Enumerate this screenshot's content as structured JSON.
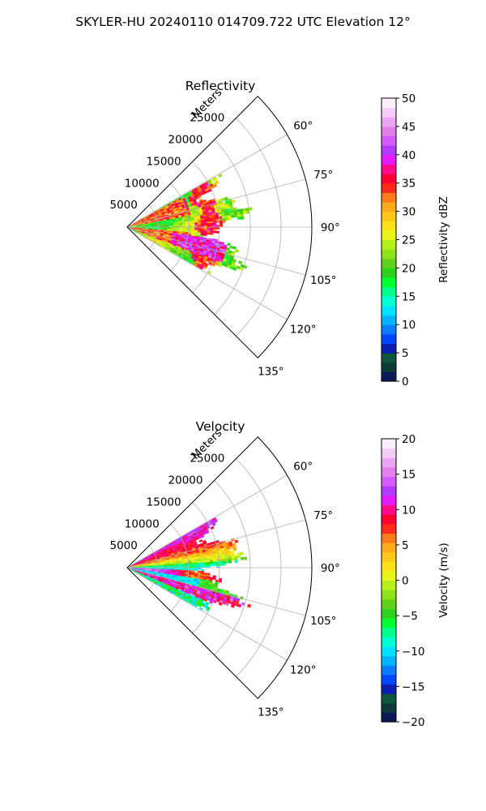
{
  "figure": {
    "suptitle": "SKYLER-HU  20240110  014709.722 UTC Elevation 12°"
  },
  "chart_data": [
    {
      "type": "heatmap",
      "title": "Reflectivity",
      "projection": "polar-sector",
      "r_axis_label": "Meters",
      "r_ticks": [
        5000,
        10000,
        15000,
        20000,
        25000
      ],
      "r_tick_labels": [
        "5000",
        "10000",
        "15000",
        "20000",
        "25000"
      ],
      "r_max": 30000,
      "theta_range_deg": [
        45,
        135
      ],
      "theta_ticks_deg": [
        60,
        75,
        90,
        105,
        120,
        135
      ],
      "theta_tick_labels": [
        "60°",
        "75°",
        "90°",
        "105°",
        "120°",
        "135°"
      ],
      "grid": true,
      "colorbar": {
        "label": "Reflectivity dBZ",
        "range": [
          0,
          50
        ],
        "ticks": [
          0,
          5,
          10,
          15,
          20,
          25,
          30,
          35,
          40,
          45,
          50
        ],
        "tick_labels": [
          "0",
          "5",
          "10",
          "15",
          "20",
          "25",
          "30",
          "35",
          "40",
          "45",
          "50"
        ],
        "colors": [
          "#0b1a55",
          "#0d3b3b",
          "#11553a",
          "#0a1fb0",
          "#0047ff",
          "#0a7dff",
          "#00b4ff",
          "#00e3ff",
          "#00ffd5",
          "#00ff8c",
          "#00ff33",
          "#2fd21a",
          "#5fd11a",
          "#8fe31a",
          "#b6f01a",
          "#e7f51a",
          "#ffe11a",
          "#ffc81a",
          "#ffaa1a",
          "#ff7c1a",
          "#ff2a1a",
          "#ff0033",
          "#ff0a8a",
          "#e61aff",
          "#b23bff",
          "#d35bff",
          "#e27fea",
          "#eaa5f0",
          "#f3cdf7",
          "#fbeefc"
        ]
      },
      "data_description_values": {
        "approx_range_m": [
          0,
          24000
        ],
        "approx_azimuth_deg": [
          60,
          120
        ],
        "dominant_dBZ": [
          20,
          38
        ]
      }
    },
    {
      "type": "heatmap",
      "title": "Velocity",
      "projection": "polar-sector",
      "r_axis_label": "Meters",
      "r_ticks": [
        5000,
        10000,
        15000,
        20000,
        25000
      ],
      "r_tick_labels": [
        "5000",
        "10000",
        "15000",
        "20000",
        "25000"
      ],
      "r_max": 30000,
      "theta_range_deg": [
        45,
        135
      ],
      "theta_ticks_deg": [
        60,
        75,
        90,
        105,
        120,
        135
      ],
      "theta_tick_labels": [
        "60°",
        "75°",
        "90°",
        "105°",
        "120°",
        "135°"
      ],
      "grid": true,
      "colorbar": {
        "label": "Velocity (m/s)",
        "range": [
          -20,
          20
        ],
        "ticks": [
          -20,
          -15,
          -10,
          -5,
          0,
          5,
          10,
          15,
          20
        ],
        "tick_labels": [
          "−20",
          "−15",
          "−10",
          "−5",
          "0",
          "5",
          "10",
          "15",
          "20"
        ],
        "colors": [
          "#0b1a55",
          "#0d3b3b",
          "#11553a",
          "#0a1fb0",
          "#0047ff",
          "#0a7dff",
          "#00b4ff",
          "#00e3ff",
          "#00ffd5",
          "#00ff8c",
          "#00ff33",
          "#2fd21a",
          "#5fd11a",
          "#8fe31a",
          "#b6f01a",
          "#e7f51a",
          "#ffe11a",
          "#ffc81a",
          "#ffaa1a",
          "#ff7c1a",
          "#ff2a1a",
          "#ff0033",
          "#ff0a8a",
          "#e61aff",
          "#b23bff",
          "#d35bff",
          "#e27fea",
          "#eaa5f0",
          "#f3cdf7",
          "#fbeefc"
        ]
      },
      "data_description_values": {
        "approx_range_m": [
          0,
          24000
        ],
        "approx_azimuth_deg": [
          60,
          120
        ],
        "dominant_velocity_ms": [
          -12,
          15
        ]
      }
    }
  ]
}
